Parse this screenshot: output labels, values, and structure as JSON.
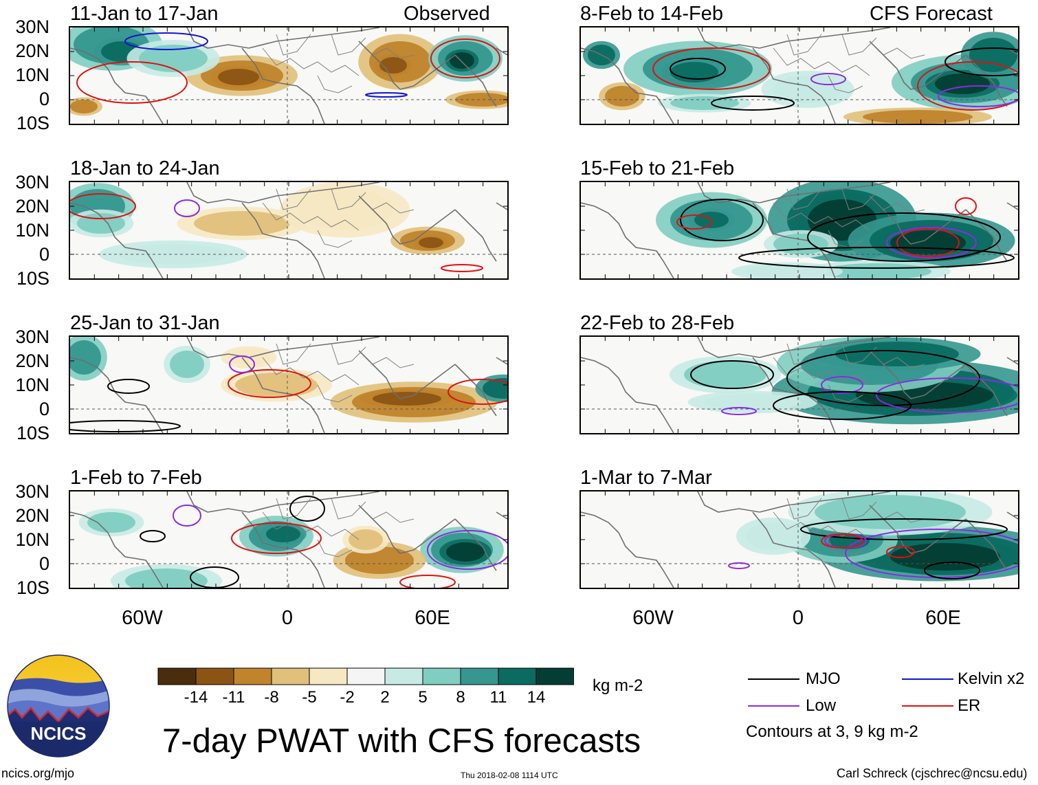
{
  "title": "7-day PWAT with CFS forecasts",
  "left_header": "Observed",
  "right_header": "CFS Forecast",
  "observed_panels": [
    "11-Jan to 17-Jan",
    "18-Jan to 24-Jan",
    "25-Jan to 31-Jan",
    "1-Feb to 7-Feb"
  ],
  "forecast_panels": [
    "8-Feb to 14-Feb",
    "15-Feb to 21-Feb",
    "22-Feb to 28-Feb",
    "1-Mar to 7-Mar"
  ],
  "lat_labels": [
    "30N",
    "20N",
    "10N",
    "0",
    "10S"
  ],
  "lon_labels": [
    "60W",
    "0",
    "60E"
  ],
  "colorbar": {
    "unit": "kg m-2",
    "labels": [
      "-14",
      "-11",
      "-8",
      "-5",
      "-2",
      "2",
      "5",
      "8",
      "11",
      "14"
    ],
    "colors": [
      "#4a2d0c",
      "#8c5414",
      "#bf842c",
      "#e0c07a",
      "#f6e8c3",
      "#f5f5f5",
      "#c7eae5",
      "#80cdc1",
      "#35978f",
      "#0b6b61",
      "#033d33"
    ]
  },
  "legend": {
    "items": [
      {
        "label": "MJO",
        "color": "#000000"
      },
      {
        "label": "Kelvin x2",
        "color": "#1414d2"
      },
      {
        "label": "Low",
        "color": "#8a2be2"
      },
      {
        "label": "ER",
        "color": "#e01010"
      }
    ],
    "contours_note": "Contours at 3, 9 kg m-2"
  },
  "logo_text": "NCICS",
  "website": "ncics.org/mjo",
  "timestamp": "Thu 2018-02-08 1114 UTC",
  "credit": "Carl Schreck (cjschrec@ncsu.edu)"
}
